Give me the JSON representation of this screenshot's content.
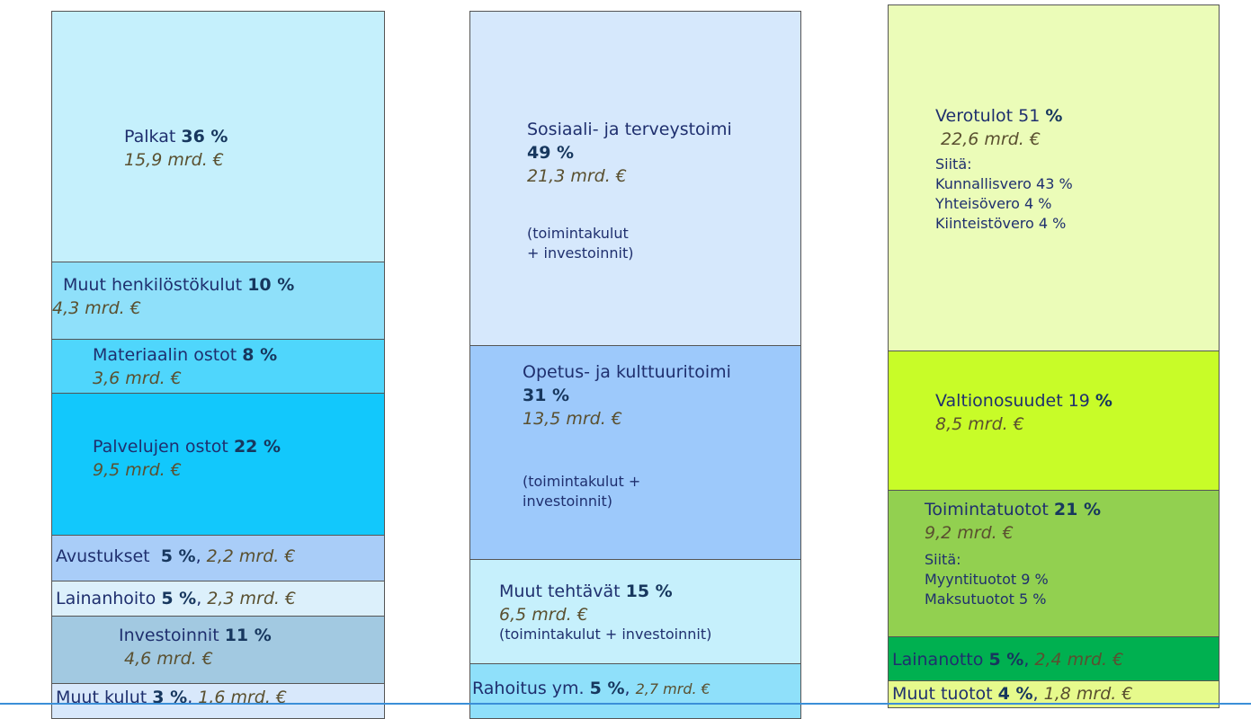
{
  "columns": [
    {
      "blocks": [
        {
          "name": "Palkat",
          "pct": "36 %",
          "amount": "15,9 mrd. €"
        },
        {
          "name": "Muut henkilöstökulut",
          "pct": "10 %",
          "amount": "4,3 mrd. €"
        },
        {
          "name": "Materiaalin ostot",
          "pct": "8 %",
          "amount": "3,6 mrd. €"
        },
        {
          "name": "Palvelujen ostot",
          "pct": "22 %",
          "amount": "9,5 mrd. €"
        },
        {
          "name": "Avustukset",
          "pct": "5 %",
          "sep": ",",
          "amount": "2,2 mrd. €"
        },
        {
          "name": "Lainanhoito",
          "pct": "5 %",
          "sep": ",",
          "amount": "2,3 mrd. €"
        },
        {
          "name": "Investoinnit",
          "pct": "11 %",
          "amount": "4,6 mrd. €"
        },
        {
          "name": "Muut kulut",
          "pct": "3 %",
          "sep": ",",
          "amount": "1,6 mrd. €"
        }
      ]
    },
    {
      "blocks": [
        {
          "name": "Sosiaali- ja terveystoimi",
          "pct": "49 %",
          "amount": "21,3 mrd. €",
          "notes": [
            "(toimintakulut",
            "+ investoinnit)"
          ]
        },
        {
          "name": "Opetus- ja kulttuuritoimi",
          "pct": "31 %",
          "amount": "13,5 mrd. €",
          "notes": [
            "(toimintakulut +",
            "investoinnit)"
          ]
        },
        {
          "name": "Muut tehtävät",
          "pct": "15 %",
          "amount": "6,5 mrd. €",
          "notes": [
            "(toimintakulut + investoinnit)"
          ]
        },
        {
          "name": "Rahoitus ym.",
          "pct": "5 %",
          "sep": ",",
          "amount": "2,7 mrd. €"
        }
      ]
    },
    {
      "blocks": [
        {
          "name": "Verotulot 51",
          "pct": "%",
          "amount": "22,6 mrd. €",
          "notes": [
            "Siitä:",
            "Kunnallisvero 43 %",
            "Yhteisövero 4 %",
            "Kiinteistövero 4 %"
          ]
        },
        {
          "name": "Valtionosuudet 19",
          "pct": "%",
          "amount": "8,5 mrd. €"
        },
        {
          "name": "Toimintatuotot",
          "pct": "21 %",
          "amount": "9,2 mrd. €",
          "notes": [
            "Siitä:",
            "Myyntituotot 9 %",
            "Maksutuotot 5 %"
          ]
        },
        {
          "name": "Lainanotto",
          "pct": "5 %",
          "sep": ",",
          "amount": "2,4 mrd. €"
        },
        {
          "name": "Muut tuotot",
          "pct": "4 %",
          "sep": ",",
          "amount": "1,8 mrd. €"
        }
      ]
    }
  ]
}
